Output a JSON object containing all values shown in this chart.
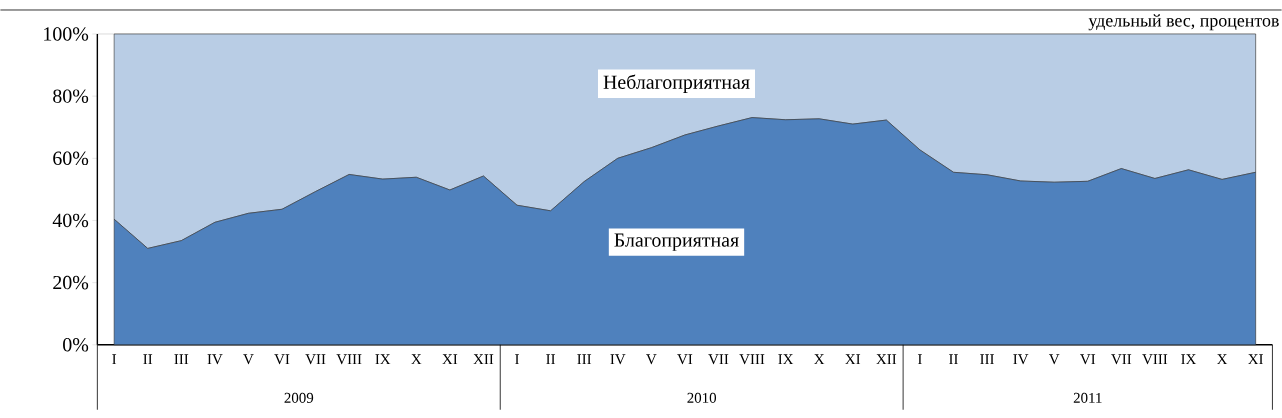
{
  "chart_data": {
    "type": "area",
    "stacked": true,
    "annotations": [
      "удельный вес, процентов",
      "2009",
      "2010",
      "2011"
    ],
    "categories": [
      "I",
      "II",
      "III",
      "IV",
      "V",
      "VI",
      "VII",
      "VIII",
      "IX",
      "X",
      "XI",
      "XII",
      "I",
      "II",
      "III",
      "IV",
      "V",
      "VI",
      "VII",
      "VIII",
      "IX",
      "X",
      "XI",
      "XII",
      "I",
      "II",
      "III",
      "IV",
      "V",
      "VI",
      "VII",
      "VIII",
      "IX",
      "X",
      "XI"
    ],
    "series": [
      {
        "name": "Благоприятная",
        "color": "#4f81bd",
        "values": [
          40.4,
          31.0,
          33.5,
          39.4,
          42.3,
          43.6,
          49.3,
          54.8,
          53.3,
          53.9,
          49.8,
          54.3,
          44.9,
          43.1,
          52.5,
          60.0,
          63.4,
          67.5,
          70.4,
          73.1,
          72.4,
          72.7,
          71.0,
          72.3,
          62.7,
          55.5,
          54.7,
          52.7,
          52.3,
          52.6,
          56.7,
          53.5,
          56.3,
          53.2,
          55.5
        ]
      },
      {
        "name": "Неблагоприятная",
        "color": "#b9cde5",
        "values": [
          59.6,
          69.0,
          66.5,
          60.6,
          57.7,
          56.4,
          50.7,
          45.2,
          46.7,
          46.1,
          50.2,
          45.7,
          55.1,
          56.9,
          47.5,
          40.0,
          36.6,
          32.5,
          29.6,
          26.9,
          27.6,
          27.3,
          29.0,
          27.7,
          37.3,
          44.5,
          45.3,
          47.3,
          47.7,
          47.4,
          43.3,
          46.5,
          43.7,
          46.8,
          44.5
        ]
      }
    ],
    "ylim": [
      0,
      100
    ],
    "yticks": [
      {
        "value": 0,
        "label": "0%"
      },
      {
        "value": 20,
        "label": "20%"
      },
      {
        "value": 40,
        "label": "40%"
      },
      {
        "value": 60,
        "label": "60%"
      },
      {
        "value": 80,
        "label": "80%"
      },
      {
        "value": 100,
        "label": "100%"
      }
    ],
    "grid": false,
    "legend": false
  }
}
